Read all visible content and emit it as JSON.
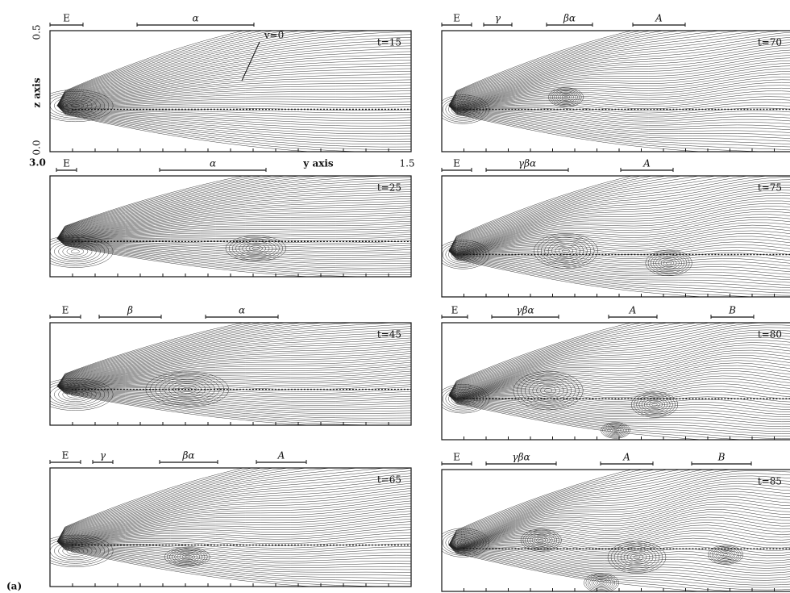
{
  "figure_label": "(a)",
  "axes": {
    "z_top": "0.5",
    "z_label": "z axis",
    "z_bottom": "0.0",
    "y_left": "3.0",
    "y_label": "y axis",
    "y_right": "1.5",
    "annotation": "v=0"
  },
  "panels": [
    {
      "time": "t=15",
      "regions": [
        "E",
        "α"
      ]
    },
    {
      "time": "t=25",
      "regions": [
        "E",
        "α"
      ]
    },
    {
      "time": "t=45",
      "regions": [
        "E",
        "β",
        "α"
      ]
    },
    {
      "time": "t=65",
      "regions": [
        "E",
        "γ",
        "βα",
        "A"
      ]
    },
    {
      "time": "t=70",
      "regions": [
        "E",
        "γ",
        "βα",
        "A"
      ]
    },
    {
      "time": "t=75",
      "regions": [
        "E",
        "γβα",
        "A"
      ]
    },
    {
      "time": "t=80",
      "regions": [
        "E",
        "γβα",
        "A",
        "B"
      ]
    },
    {
      "time": "t=85",
      "regions": [
        "E",
        "γβα",
        "A",
        "B"
      ]
    }
  ]
}
